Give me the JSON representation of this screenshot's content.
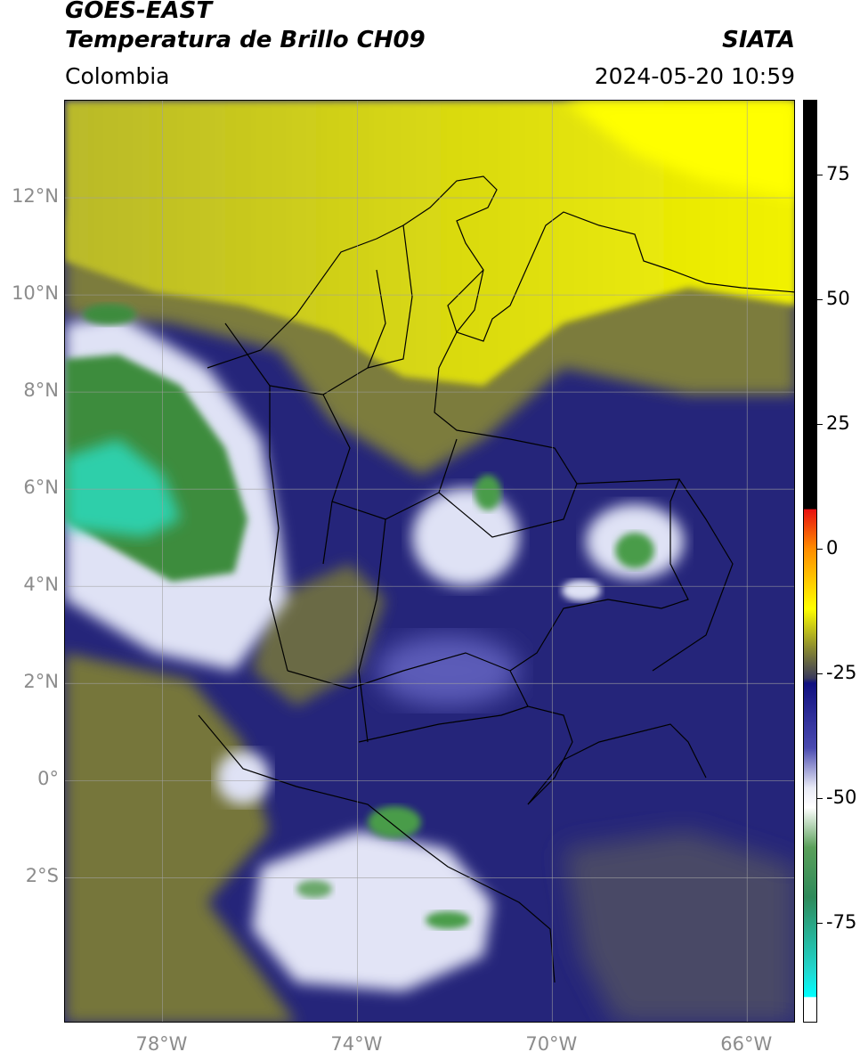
{
  "header": {
    "satellite": "GOES-EAST",
    "product": "Temperatura de Brillo CH09",
    "organization": "SIATA",
    "region": "Colombia",
    "datetime": "2024-05-20 10:59"
  },
  "map": {
    "extent": {
      "lon_min": -80.0,
      "lon_max": -65.0,
      "lat_min": -5.0,
      "lat_max": 14.0
    },
    "lat_ticks": [
      {
        "value": 12,
        "label": "12°N"
      },
      {
        "value": 10,
        "label": "10°N"
      },
      {
        "value": 8,
        "label": "8°N"
      },
      {
        "value": 6,
        "label": "6°N"
      },
      {
        "value": 4,
        "label": "4°N"
      },
      {
        "value": 2,
        "label": "2°N"
      },
      {
        "value": 0,
        "label": "0°"
      },
      {
        "value": -2,
        "label": "2°S"
      }
    ],
    "lon_ticks": [
      {
        "value": -78,
        "label": "78°W"
      },
      {
        "value": -74,
        "label": "74°W"
      },
      {
        "value": -70,
        "label": "70°W"
      },
      {
        "value": -66,
        "label": "66°W"
      }
    ],
    "colors": {
      "warm_yellow": "#e6e600",
      "olive": "#8a8a3a",
      "dark_blue": "#1a1a7a",
      "light_blue": "#c8ccee",
      "green": "#3c8c3c",
      "cyan_green": "#2ecfaa"
    }
  },
  "colorbar": {
    "ticks": [
      {
        "value": 75,
        "label": "75"
      },
      {
        "value": 50,
        "label": "50"
      },
      {
        "value": 25,
        "label": "25"
      },
      {
        "value": 0,
        "label": "0"
      },
      {
        "value": -25,
        "label": "-25"
      },
      {
        "value": -50,
        "label": "-50"
      },
      {
        "value": -75,
        "label": "-75"
      }
    ],
    "range": [
      -95,
      90
    ],
    "stops": [
      {
        "value": 90,
        "color": "#000000"
      },
      {
        "value": 8,
        "color": "#000000"
      },
      {
        "value": 7.9,
        "color": "#e81010"
      },
      {
        "value": 0,
        "color": "#ff8c00"
      },
      {
        "value": -12,
        "color": "#ffff00"
      },
      {
        "value": -20,
        "color": "#8a8a30"
      },
      {
        "value": -26,
        "color": "#3a3a5a"
      },
      {
        "value": -27,
        "color": "#101080"
      },
      {
        "value": -40,
        "color": "#4a4ab0"
      },
      {
        "value": -48,
        "color": "#e8eaf6"
      },
      {
        "value": -52,
        "color": "#ffffff"
      },
      {
        "value": -60,
        "color": "#5aa05a"
      },
      {
        "value": -70,
        "color": "#2e8a5a"
      },
      {
        "value": -85,
        "color": "#20d8d0"
      },
      {
        "value": -90,
        "color": "#00ffff"
      },
      {
        "value": -90.1,
        "color": "#ffffff"
      },
      {
        "value": -95,
        "color": "#ffffff"
      }
    ]
  }
}
